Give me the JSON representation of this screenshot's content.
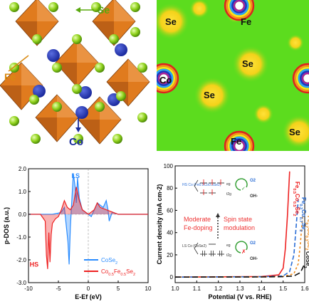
{
  "panel_a": {
    "labels": {
      "se": "Se",
      "fe": "Fe",
      "co": "Co"
    },
    "colors": {
      "octahedron": "#e07b1e",
      "se_atom": "#8fd11b",
      "co_atom": "#1b2a9e",
      "fe_label": "#d98a12",
      "co_label": "#1a2c9c",
      "se_label": "#5aa80f"
    }
  },
  "panel_b": {
    "labels": {
      "se": "Se",
      "fe": "Fe",
      "co": "Co"
    },
    "colors": {
      "background": "#5cdc1e",
      "lobe": "#f4d21a"
    }
  },
  "chart_data": [
    {
      "type": "line",
      "panel": "c",
      "ylabel": "p-DOS (a.u.)",
      "xlabel": "E-Ef (eV)",
      "xlim": [
        -10,
        10
      ],
      "ylim": [
        -3,
        2
      ],
      "xticks": [
        "-10",
        "-5",
        "0",
        "5",
        "10"
      ],
      "yticks": [
        "2.0",
        "1.0",
        "0.0",
        "-1.0",
        "-2.0",
        "-3.0"
      ],
      "annotations": [
        "LS",
        "HS"
      ],
      "series": [
        {
          "name": "CoSe2",
          "name_sub": "2",
          "name_base": "CoSe",
          "color": "#2a8cff",
          "x": [
            -10,
            -6,
            -5,
            -4.5,
            -4,
            -3.4,
            -3.2,
            -3,
            -2.8,
            -2.5,
            -2.2,
            -2,
            -1.8,
            -1.5,
            -1,
            0,
            0.5,
            1,
            1.5,
            2,
            2.5,
            3,
            3.3,
            3.5,
            4,
            5,
            6,
            10
          ],
          "y": [
            0,
            0,
            0.05,
            0.1,
            0.3,
            -1.2,
            -2.2,
            -0.6,
            0.4,
            1.8,
            1.2,
            0.5,
            1.6,
            0.7,
            0.2,
            0,
            -0.1,
            0.2,
            0.5,
            0.4,
            0.3,
            0.6,
            0.2,
            -0.3,
            0.1,
            0,
            0,
            0
          ]
        },
        {
          "name": "Co0.5Fe0.5Se2",
          "color": "#ee2222",
          "x": [
            -10,
            -8,
            -7.2,
            -7,
            -6.8,
            -6.6,
            -6.4,
            -6.2,
            -6,
            -5.5,
            -5,
            -4.5,
            -4,
            -3.5,
            -3,
            -2.5,
            -2,
            -1.5,
            -1,
            0,
            0.5,
            1,
            1.5,
            2,
            3,
            4,
            5,
            10
          ],
          "y": [
            0,
            0,
            -0.3,
            -1.8,
            -2.4,
            -0.8,
            -2.1,
            -0.9,
            -0.4,
            -0.2,
            -0.1,
            0.2,
            0.6,
            0.3,
            0.2,
            0.4,
            1.2,
            0.6,
            0.2,
            0,
            0.1,
            0.2,
            0.5,
            0.3,
            0.2,
            0.1,
            0,
            0
          ]
        }
      ]
    },
    {
      "type": "line",
      "panel": "d",
      "ylabel": "Current density (mA cm-2)",
      "xlabel": "Potential (V vs. RHE)",
      "xlim": [
        1.0,
        1.6
      ],
      "ylim": [
        -5,
        100
      ],
      "xticks": [
        "1.0",
        "1.1",
        "1.2",
        "1.3",
        "1.4",
        "1.5",
        "1.6"
      ],
      "yticks": [
        "0",
        "20",
        "40",
        "60",
        "80",
        "100"
      ],
      "series": [
        {
          "name": "Fe0.5Co0.5Se2",
          "color": "#ee2222",
          "dash": "",
          "x": [
            1.0,
            1.4,
            1.48,
            1.5,
            1.51,
            1.52,
            1.53
          ],
          "y": [
            0,
            0.5,
            2,
            8,
            25,
            55,
            95
          ]
        },
        {
          "name": "Fe0.3Co0.7Se2",
          "color": "#2a6dd6",
          "dash": "6,3",
          "x": [
            1.0,
            1.4,
            1.5,
            1.53,
            1.55,
            1.56,
            1.57
          ],
          "y": [
            0,
            0.3,
            1,
            5,
            20,
            45,
            70
          ]
        },
        {
          "name": "Fe0.7Co0.3Se2",
          "color": "#ee8a1a",
          "dash": "3,3",
          "x": [
            1.0,
            1.4,
            1.5,
            1.55,
            1.57,
            1.58,
            1.59
          ],
          "y": [
            0,
            0.2,
            0.6,
            3,
            12,
            30,
            55
          ]
        },
        {
          "name": "CoSe2",
          "color": "#111111",
          "dash": "8,4",
          "x": [
            1.0,
            1.4,
            1.5,
            1.55,
            1.58,
            1.6
          ],
          "y": [
            0,
            0.1,
            0.4,
            1,
            4,
            12
          ]
        }
      ],
      "series_labels": [
        "Fe0.5Co0.5Se2",
        "Fe0.3Co0.7Se2",
        "Fe0.7Co0.3Se2",
        "CoSe2"
      ],
      "inset": {
        "hs_label": "HS Co (Fe0.5Co0.5Se2)",
        "ls_label": "LS Co (CoSe2)",
        "eg": "eg",
        "t2g": "t2g",
        "o2": "O2",
        "oh": "OH-",
        "moderate": "Moderate",
        "fe_doping": "Fe-doping",
        "spin": "Spin state",
        "modulation": "modulation"
      }
    }
  ]
}
